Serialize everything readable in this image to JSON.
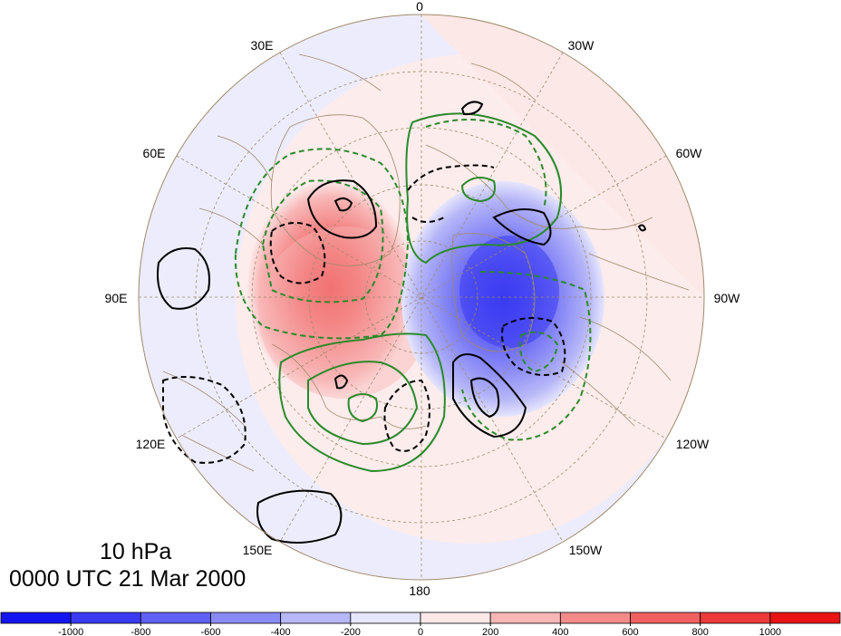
{
  "level_label": "10 hPa",
  "valid_time": "0000 UTC 21 Mar 2000",
  "longitude_labels": [
    "0",
    "30W",
    "60W",
    "90W",
    "120W",
    "150W",
    "180",
    "150E",
    "120E",
    "90E",
    "60E",
    "30E"
  ],
  "colorbar": {
    "ticks": [
      "-1000",
      "-800",
      "-600",
      "-400",
      "-200",
      "0",
      "200",
      "400",
      "600",
      "800",
      "1000"
    ],
    "colors": [
      "#1414f0",
      "#3a3af2",
      "#6060f4",
      "#8a8af6",
      "#b6b6f8",
      "#e6e6fc",
      "#fde8e8",
      "#f8b6b6",
      "#f48a8a",
      "#f06060",
      "#ec3a3a",
      "#e81414"
    ]
  },
  "colors": {
    "positive_contour": "#2a8a2a",
    "negative_contour": "#000000",
    "coastline": "#a08a6a",
    "graticule": "#9a8a6a"
  }
}
